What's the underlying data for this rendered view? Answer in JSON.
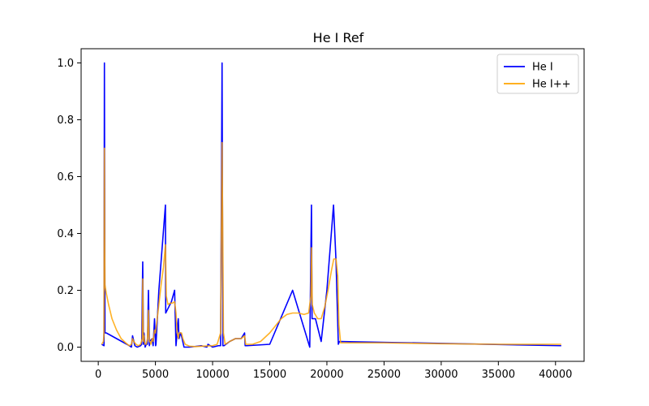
{
  "chart_data": {
    "type": "line",
    "title": "He I Ref",
    "xlabel": "",
    "ylabel": "",
    "xlim": [
      -1500,
      42500
    ],
    "ylim": [
      -0.05,
      1.05
    ],
    "xticks": [
      0,
      5000,
      10000,
      15000,
      20000,
      25000,
      30000,
      35000,
      40000
    ],
    "yticks": [
      0.0,
      0.2,
      0.4,
      0.6,
      0.8,
      1.0
    ],
    "grid": false,
    "legend_position": "top-right",
    "series": [
      {
        "name": "He I",
        "color": "#0000ff",
        "x": [
          300,
          500,
          537,
          584,
          600,
          700,
          2500,
          2900,
          3000,
          3200,
          3400,
          3700,
          3800,
          3889,
          3950,
          4000,
          4100,
          4200,
          4300,
          4388,
          4471,
          4500,
          4713,
          4800,
          4922,
          5016,
          5048,
          5300,
          5876,
          5900,
          6400,
          6678,
          6800,
          7000,
          7065,
          7200,
          7281,
          7500,
          8000,
          9000,
          9500,
          9600,
          10000,
          10500,
          10700,
          10830,
          10900,
          11000,
          11500,
          12000,
          12500,
          12800,
          12850,
          13000,
          15000,
          17000,
          18500,
          18650,
          18700,
          19000,
          19500,
          20000,
          20580,
          20800,
          21000,
          21100,
          40500
        ],
        "y": [
          0.01,
          0.005,
          1.0,
          0.05,
          0.05,
          0.05,
          0.01,
          0.0,
          0.04,
          0.005,
          0.0,
          0.005,
          0.01,
          0.3,
          0.01,
          0.05,
          0.0,
          0.01,
          0.01,
          0.2,
          0.005,
          0.02,
          0.03,
          0.005,
          0.1,
          0.005,
          0.01,
          0.2,
          0.5,
          0.12,
          0.16,
          0.2,
          0.005,
          0.1,
          0.03,
          0.05,
          0.04,
          0.0,
          0.0,
          0.005,
          0.0,
          0.01,
          0.0,
          0.005,
          0.005,
          1.0,
          0.005,
          0.005,
          0.02,
          0.03,
          0.03,
          0.05,
          0.005,
          0.005,
          0.01,
          0.2,
          0.0,
          0.5,
          0.1,
          0.1,
          0.02,
          0.2,
          0.5,
          0.3,
          0.01,
          0.02,
          0.005
        ]
      },
      {
        "name": "He I++",
        "color": "#ffa500",
        "x": [
          300,
          450,
          500,
          537,
          560,
          584,
          620,
          700,
          900,
          1200,
          1600,
          2000,
          2400,
          2700,
          2900,
          3000,
          3100,
          3300,
          3500,
          3700,
          3850,
          3889,
          3930,
          3960,
          4000,
          4030,
          4100,
          4200,
          4300,
          4388,
          4430,
          4471,
          4520,
          4600,
          4713,
          4800,
          4922,
          5000,
          5100,
          5300,
          5500,
          5700,
          5876,
          5950,
          6100,
          6300,
          6500,
          6678,
          6800,
          6900,
          7000,
          7065,
          7150,
          7281,
          7400,
          7600,
          8000,
          8500,
          9000,
          9500,
          10000,
          10400,
          10700,
          10830,
          10950,
          11100,
          11500,
          12000,
          12500,
          12800,
          12900,
          13500,
          14200,
          15000,
          15500,
          16000,
          16500,
          17000,
          17500,
          18000,
          18400,
          18600,
          18650,
          18720,
          18900,
          19200,
          19500,
          19800,
          20100,
          20400,
          20600,
          20800,
          20950,
          21050,
          21200,
          25000,
          30000,
          35000,
          40500
        ],
        "y": [
          0.01,
          0.02,
          0.05,
          0.7,
          0.4,
          0.22,
          0.21,
          0.19,
          0.15,
          0.1,
          0.06,
          0.03,
          0.015,
          0.005,
          0.01,
          0.03,
          0.02,
          0.01,
          0.005,
          0.01,
          0.03,
          0.24,
          0.06,
          0.02,
          0.04,
          0.02,
          0.01,
          0.01,
          0.03,
          0.13,
          0.04,
          0.02,
          0.02,
          0.01,
          0.03,
          0.02,
          0.06,
          0.05,
          0.08,
          0.15,
          0.22,
          0.28,
          0.36,
          0.18,
          0.15,
          0.155,
          0.155,
          0.16,
          0.12,
          0.05,
          0.03,
          0.05,
          0.05,
          0.05,
          0.03,
          0.01,
          0.003,
          0.002,
          0.003,
          0.004,
          0.005,
          0.01,
          0.05,
          0.72,
          0.05,
          0.01,
          0.02,
          0.03,
          0.03,
          0.04,
          0.01,
          0.01,
          0.02,
          0.05,
          0.075,
          0.1,
          0.115,
          0.12,
          0.12,
          0.115,
          0.12,
          0.18,
          0.35,
          0.15,
          0.12,
          0.1,
          0.1,
          0.14,
          0.2,
          0.27,
          0.31,
          0.31,
          0.25,
          0.08,
          0.015,
          0.015,
          0.012,
          0.01,
          0.01
        ]
      }
    ]
  }
}
